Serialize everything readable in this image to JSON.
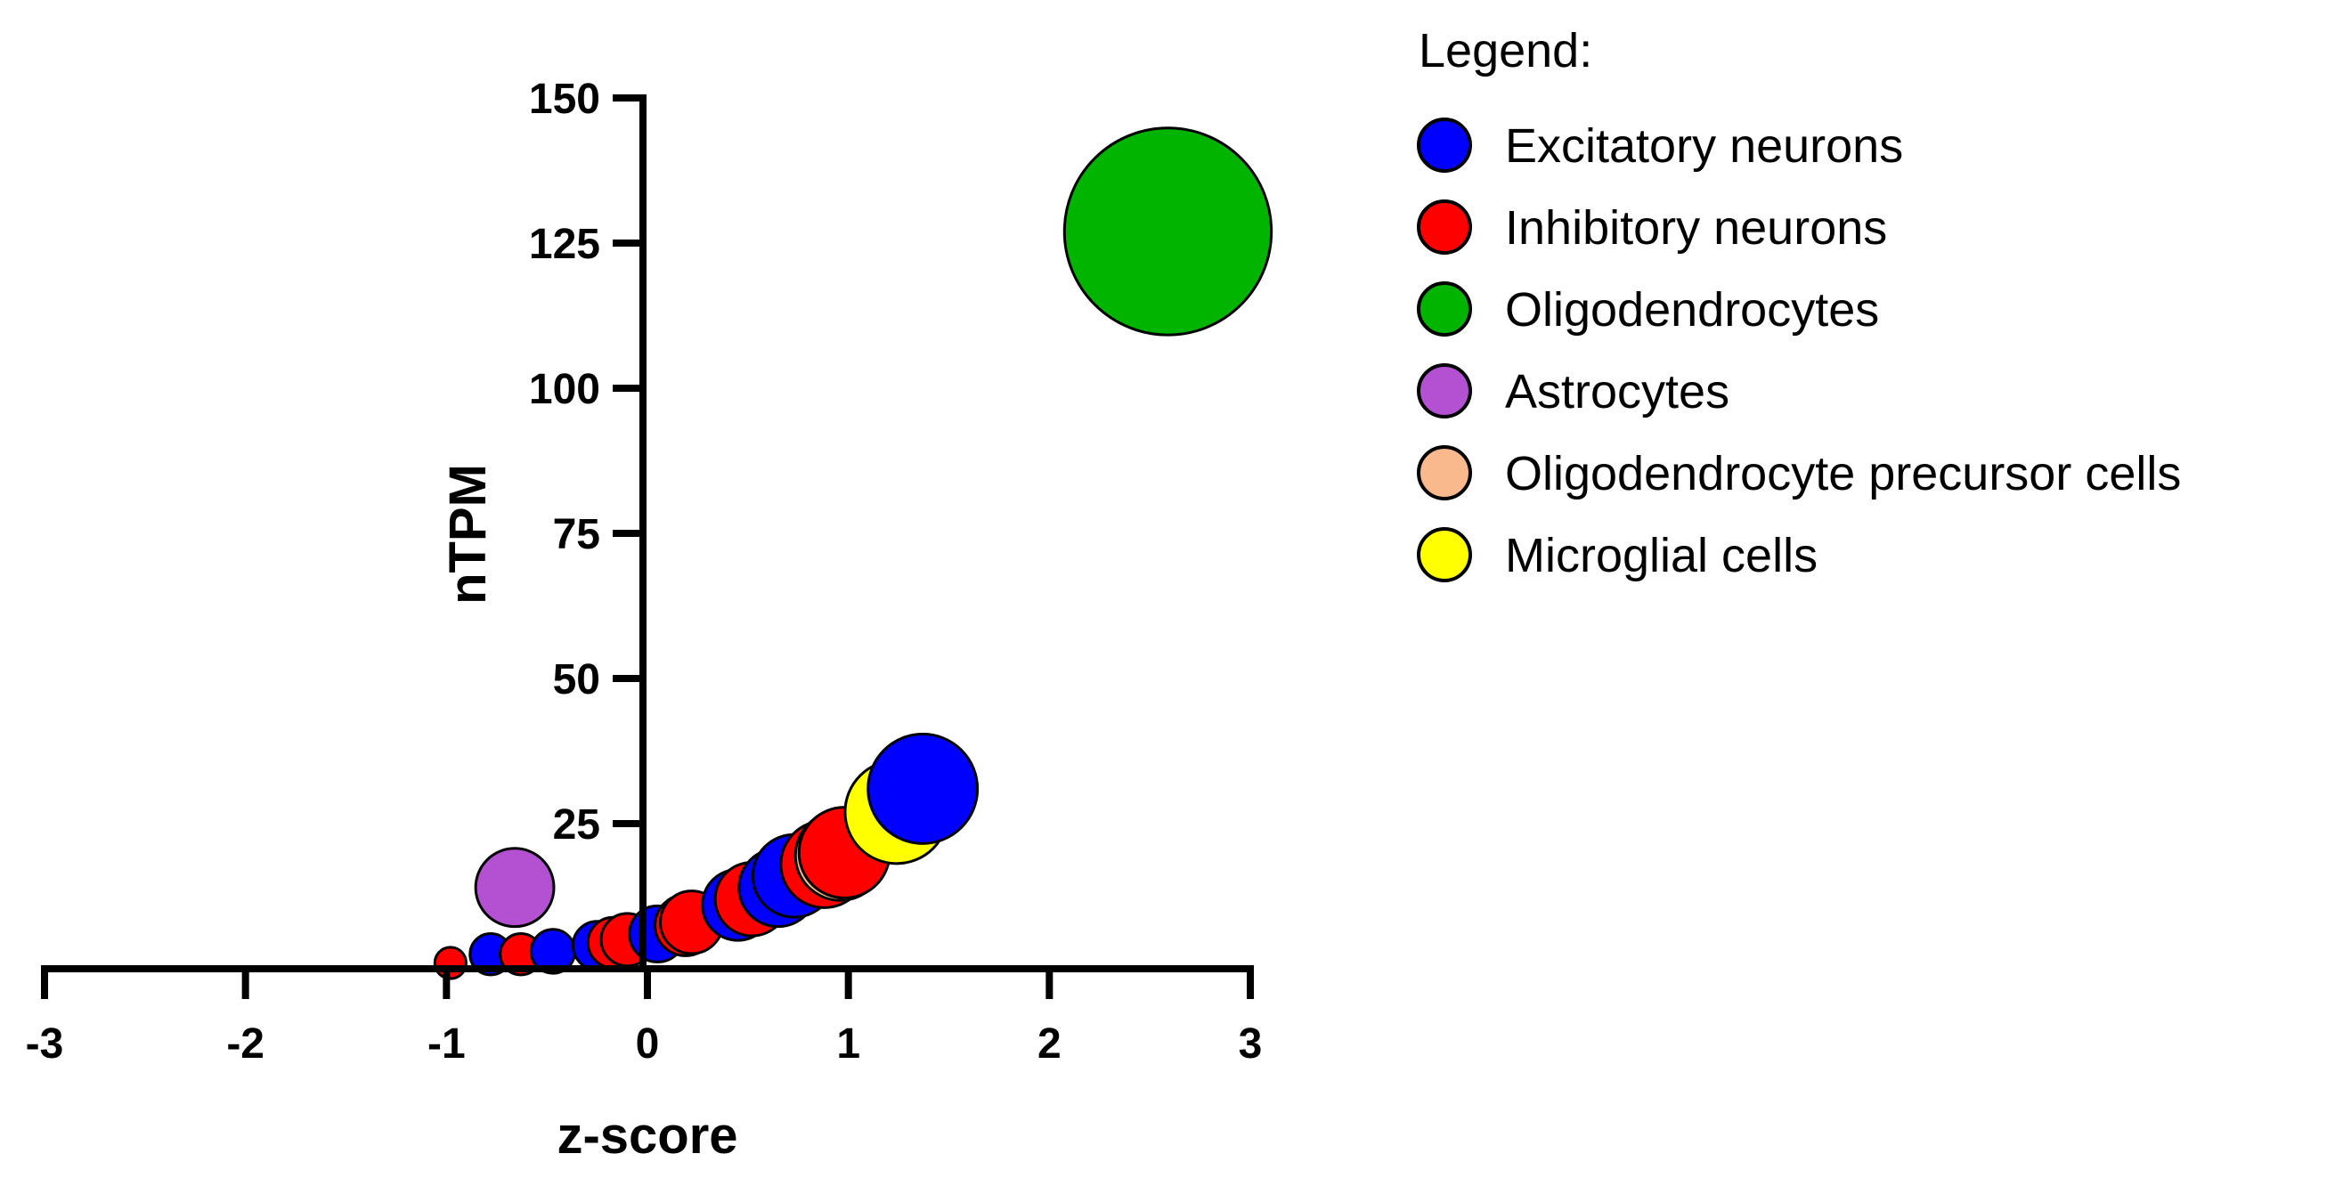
{
  "chart_data": {
    "type": "scatter",
    "subtype": "bubble",
    "title": "",
    "xlabel": "z-score",
    "ylabel": "nTPM",
    "xlim": [
      -3,
      3
    ],
    "ylim": [
      0,
      150
    ],
    "xticks": [
      "-3",
      "-2",
      "-1",
      "0",
      "1",
      "2",
      "3"
    ],
    "yticks": [
      "25",
      "50",
      "75",
      "100",
      "125",
      "150"
    ],
    "grid": false,
    "legend": {
      "title": "Legend:",
      "placement": "top-right outside"
    },
    "series": [
      {
        "name": "Excitatory neurons",
        "color": "#0000ff",
        "points": [
          {
            "x": -0.78,
            "y": 2.5
          },
          {
            "x": -0.47,
            "y": 3
          },
          {
            "x": -0.25,
            "y": 4
          },
          {
            "x": 0.05,
            "y": 6
          },
          {
            "x": 0.45,
            "y": 11
          },
          {
            "x": 0.65,
            "y": 14
          },
          {
            "x": 0.73,
            "y": 16
          },
          {
            "x": 1.37,
            "y": 31
          }
        ]
      },
      {
        "name": "Inhibitory neurons",
        "color": "#ff0000",
        "points": [
          {
            "x": -0.98,
            "y": 1
          },
          {
            "x": -0.63,
            "y": 2.5
          },
          {
            "x": -0.17,
            "y": 4.5
          },
          {
            "x": -0.1,
            "y": 5
          },
          {
            "x": 0.19,
            "y": 7.5
          },
          {
            "x": 0.22,
            "y": 8
          },
          {
            "x": 0.52,
            "y": 12
          },
          {
            "x": 0.88,
            "y": 18
          },
          {
            "x": 0.98,
            "y": 20
          }
        ]
      },
      {
        "name": "Oligodendrocytes",
        "color": "#00b400",
        "points": [
          {
            "x": 2.59,
            "y": 127
          }
        ]
      },
      {
        "name": "Astrocytes",
        "color": "#b450d2",
        "points": [
          {
            "x": -0.66,
            "y": 14
          }
        ]
      },
      {
        "name": "Oligodendrocyte precursor cells",
        "color": "#fab98c",
        "points": [
          {
            "x": 0.96,
            "y": 19.5
          }
        ]
      },
      {
        "name": "Microglial cells",
        "color": "#ffff00",
        "points": [
          {
            "x": 1.24,
            "y": 27
          }
        ]
      }
    ]
  }
}
